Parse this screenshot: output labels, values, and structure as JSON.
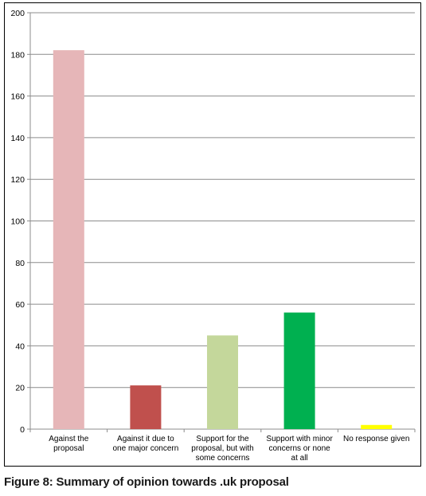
{
  "caption": "Figure 8: Summary of opinion towards .uk proposal",
  "chart_data": {
    "type": "bar",
    "title": "",
    "xlabel": "",
    "ylabel": "",
    "ylim": [
      0,
      200
    ],
    "yticks": [
      0,
      20,
      40,
      60,
      80,
      100,
      120,
      140,
      160,
      180,
      200
    ],
    "grid": true,
    "legend": "none",
    "categories": [
      [
        "Against the",
        "proposal"
      ],
      [
        "Against it due to",
        "one major concern"
      ],
      [
        "Support for the",
        "proposal, but with",
        "some concerns"
      ],
      [
        "Support with minor",
        "concerns or none",
        "at all"
      ],
      [
        "No response given"
      ]
    ],
    "values": [
      182,
      21,
      45,
      56,
      2
    ],
    "colors": [
      "#e6b6b8",
      "#c0504d",
      "#c4d79b",
      "#00b050",
      "#ffff00"
    ]
  }
}
